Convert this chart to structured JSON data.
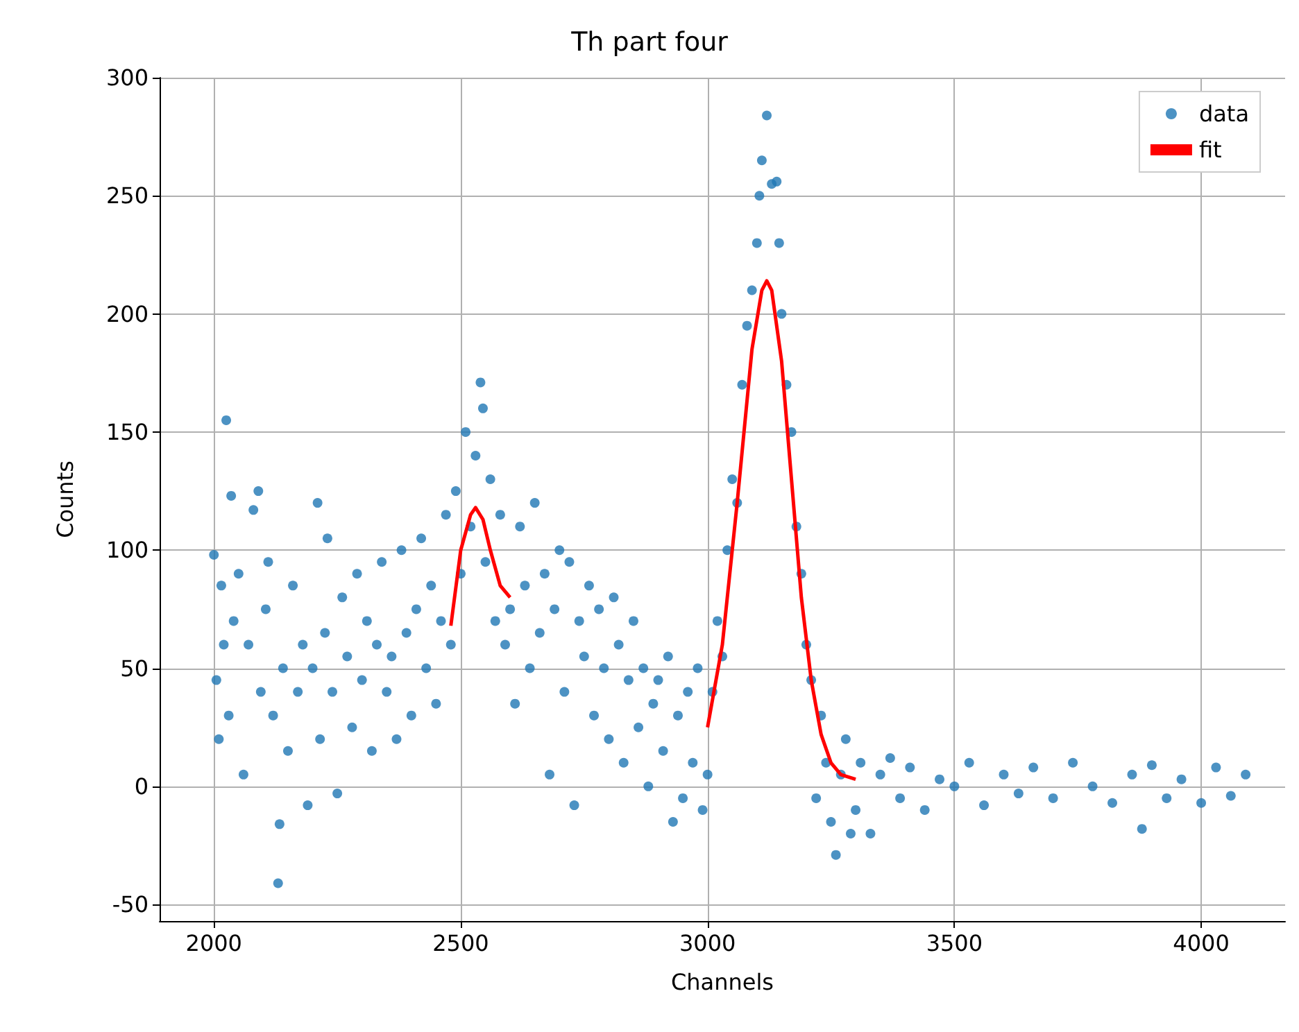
{
  "chart_data": {
    "type": "scatter",
    "title": "Th part four",
    "xlabel": "Channels",
    "ylabel": "Counts",
    "xlim": [
      1890,
      4170
    ],
    "xticks": [
      2000,
      2500,
      3000,
      3500,
      4000
    ],
    "ylim": [
      -57,
      300
    ],
    "yticks": [
      -50,
      0,
      50,
      100,
      150,
      200,
      250,
      300
    ],
    "grid": true,
    "legend": "top right",
    "marker": "circle",
    "series": [
      {
        "name": "data",
        "color": "#1f77b4",
        "x": [
          2000,
          2005,
          2010,
          2015,
          2020,
          2025,
          2030,
          2035,
          2040,
          2050,
          2060,
          2070,
          2080,
          2090,
          2095,
          2105,
          2110,
          2120,
          2130,
          2133,
          2140,
          2150,
          2160,
          2170,
          2180,
          2190,
          2200,
          2210,
          2215,
          2225,
          2230,
          2240,
          2250,
          2260,
          2270,
          2280,
          2290,
          2300,
          2310,
          2320,
          2330,
          2340,
          2350,
          2360,
          2370,
          2380,
          2390,
          2400,
          2410,
          2420,
          2430,
          2440,
          2450,
          2460,
          2470,
          2480,
          2490,
          2500,
          2510,
          2520,
          2530,
          2540,
          2545,
          2550,
          2560,
          2570,
          2580,
          2590,
          2600,
          2610,
          2620,
          2630,
          2640,
          2650,
          2660,
          2670,
          2680,
          2690,
          2700,
          2710,
          2720,
          2730,
          2740,
          2750,
          2760,
          2770,
          2780,
          2790,
          2800,
          2810,
          2820,
          2830,
          2840,
          2850,
          2860,
          2870,
          2880,
          2890,
          2900,
          2910,
          2920,
          2930,
          2940,
          2950,
          2960,
          2970,
          2980,
          2990,
          3000,
          3010,
          3020,
          3030,
          3040,
          3050,
          3060,
          3070,
          3080,
          3090,
          3100,
          3105,
          3110,
          3120,
          3130,
          3140,
          3145,
          3150,
          3160,
          3170,
          3180,
          3190,
          3200,
          3210,
          3220,
          3230,
          3240,
          3250,
          3260,
          3270,
          3280,
          3290,
          3300,
          3310,
          3330,
          3350,
          3370,
          3390,
          3410,
          3440,
          3470,
          3500,
          3530,
          3560,
          3600,
          3630,
          3660,
          3700,
          3740,
          3780,
          3820,
          3860,
          3880,
          3900,
          3930,
          3960,
          4000,
          4030,
          4060,
          4090
        ],
        "values": [
          98,
          45,
          20,
          85,
          60,
          155,
          30,
          123,
          70,
          90,
          5,
          60,
          117,
          125,
          40,
          75,
          95,
          30,
          -41,
          -16,
          50,
          15,
          85,
          40,
          60,
          -8,
          50,
          120,
          20,
          65,
          105,
          40,
          -3,
          80,
          55,
          25,
          90,
          45,
          70,
          15,
          60,
          95,
          40,
          55,
          20,
          100,
          65,
          30,
          75,
          105,
          50,
          85,
          35,
          70,
          115,
          60,
          125,
          90,
          150,
          110,
          140,
          171,
          160,
          95,
          130,
          70,
          115,
          60,
          75,
          35,
          110,
          85,
          50,
          120,
          65,
          90,
          5,
          75,
          100,
          40,
          95,
          -8,
          70,
          55,
          85,
          30,
          75,
          50,
          20,
          80,
          60,
          10,
          45,
          70,
          25,
          50,
          0,
          35,
          45,
          15,
          55,
          -15,
          30,
          -5,
          40,
          10,
          50,
          -10,
          5,
          40,
          70,
          55,
          100,
          130,
          120,
          170,
          195,
          210,
          230,
          250,
          265,
          284,
          255,
          256,
          230,
          200,
          170,
          150,
          110,
          90,
          60,
          45,
          -5,
          30,
          10,
          -15,
          -29,
          5,
          20,
          -20,
          -10,
          10,
          -20,
          5,
          12,
          -5,
          8,
          -10,
          3,
          0,
          10,
          -8,
          5,
          -3,
          8,
          -5,
          10,
          0,
          -7,
          5,
          -18,
          9,
          -5,
          3,
          -7,
          8,
          -4,
          5
        ]
      },
      {
        "name": "fit",
        "type": "line",
        "color": "#ff0000",
        "marker": "none",
        "x": [
          2480,
          2500,
          2520,
          2530,
          2545,
          2560,
          2580,
          2600,
          null,
          3000,
          3030,
          3060,
          3090,
          3110,
          3120,
          3130,
          3150,
          3170,
          3190,
          3210,
          3230,
          3250,
          3270,
          3300
        ],
        "values": [
          68,
          100,
          115,
          118,
          113,
          100,
          85,
          80,
          null,
          25,
          60,
          120,
          185,
          210,
          214,
          210,
          180,
          130,
          80,
          45,
          22,
          10,
          5,
          3
        ]
      }
    ]
  }
}
